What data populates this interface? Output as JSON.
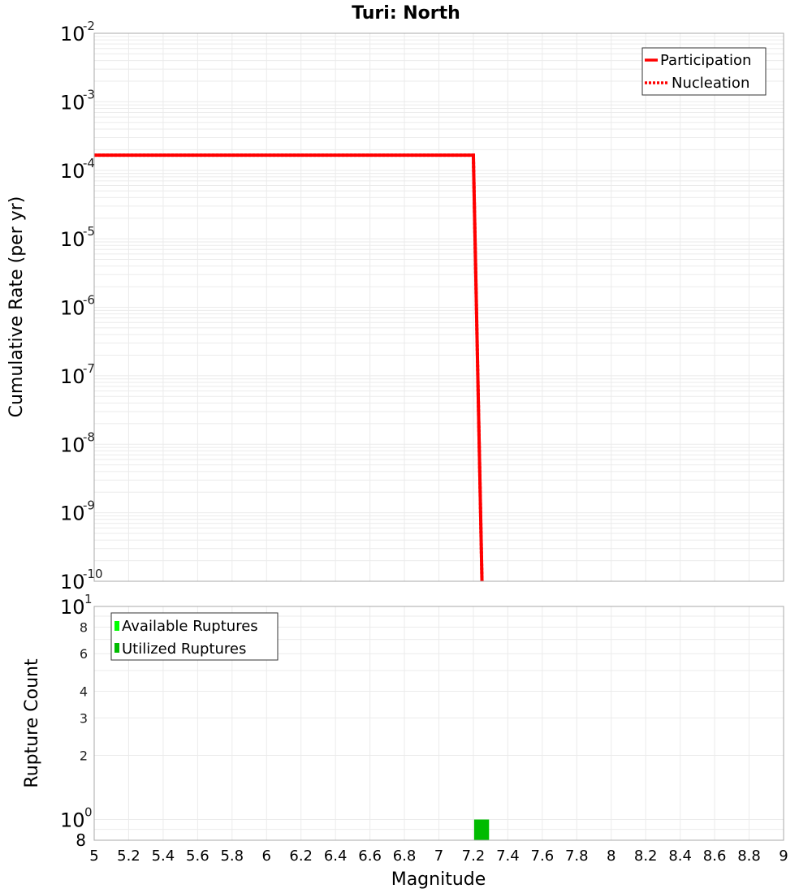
{
  "title": "Turi: North",
  "top_panel": {
    "ylabel": "Cumulative Rate (per yr)",
    "y_ticks": [
      {
        "base": "10",
        "exp": "-2"
      },
      {
        "base": "10",
        "exp": "-3"
      },
      {
        "base": "10",
        "exp": "-4"
      },
      {
        "base": "10",
        "exp": "-5"
      },
      {
        "base": "10",
        "exp": "-6"
      },
      {
        "base": "10",
        "exp": "-7"
      },
      {
        "base": "10",
        "exp": "-8"
      },
      {
        "base": "10",
        "exp": "-9"
      },
      {
        "base": "10",
        "exp": "-10"
      }
    ],
    "legend": [
      {
        "label": "Participation",
        "color": "#ff0000",
        "style": "solid"
      },
      {
        "label": "Nucleation",
        "color": "#ff0000",
        "style": "dotted"
      }
    ]
  },
  "bottom_panel": {
    "ylabel": "Rupture Count",
    "y_ticks_major": [
      {
        "base": "10",
        "exp": "1"
      },
      {
        "base": "10",
        "exp": "0"
      }
    ],
    "y_ticks_minor": [
      "8",
      "6",
      "4",
      "3",
      "2",
      "8"
    ],
    "legend": [
      {
        "label": "Available Ruptures",
        "color": "#00ff00"
      },
      {
        "label": "Utilized Ruptures",
        "color": "#00bb00"
      }
    ]
  },
  "xlabel": "Magnitude",
  "x_ticks": [
    "5",
    "5.2",
    "5.4",
    "5.6",
    "5.8",
    "6",
    "6.2",
    "6.4",
    "6.6",
    "6.8",
    "7",
    "7.2",
    "7.4",
    "7.6",
    "7.8",
    "8",
    "8.2",
    "8.4",
    "8.6",
    "8.8",
    "9"
  ],
  "chart_data": [
    {
      "type": "line",
      "title": "Turi: North",
      "xlabel": "Magnitude",
      "ylabel": "Cumulative Rate (per yr)",
      "xlim": [
        5,
        9
      ],
      "ylim": [
        1e-10,
        0.01
      ],
      "yscale": "log",
      "grid": true,
      "legend_position": "upper right",
      "series": [
        {
          "name": "Participation",
          "color": "#ff0000",
          "style": "solid",
          "x": [
            5.0,
            7.2,
            7.25
          ],
          "y": [
            0.000166,
            0.000166,
            1e-10
          ]
        },
        {
          "name": "Nucleation",
          "color": "#ff0000",
          "style": "dotted",
          "x": [
            5.0,
            7.2,
            7.25
          ],
          "y": [
            0.000166,
            0.000166,
            1e-10
          ]
        }
      ]
    },
    {
      "type": "bar",
      "xlabel": "Magnitude",
      "ylabel": "Rupture Count",
      "xlim": [
        5,
        9
      ],
      "ylim": [
        0.8,
        10
      ],
      "yscale": "log",
      "grid": true,
      "legend_position": "upper left",
      "series": [
        {
          "name": "Available Ruptures",
          "color": "#00ff00",
          "bins": [
            {
              "x_start": 7.2,
              "x_end": 7.3,
              "value": 1
            }
          ]
        },
        {
          "name": "Utilized Ruptures",
          "color": "#00bb00",
          "bins": [
            {
              "x_start": 7.2,
              "x_end": 7.3,
              "value": 1
            }
          ]
        }
      ]
    }
  ]
}
